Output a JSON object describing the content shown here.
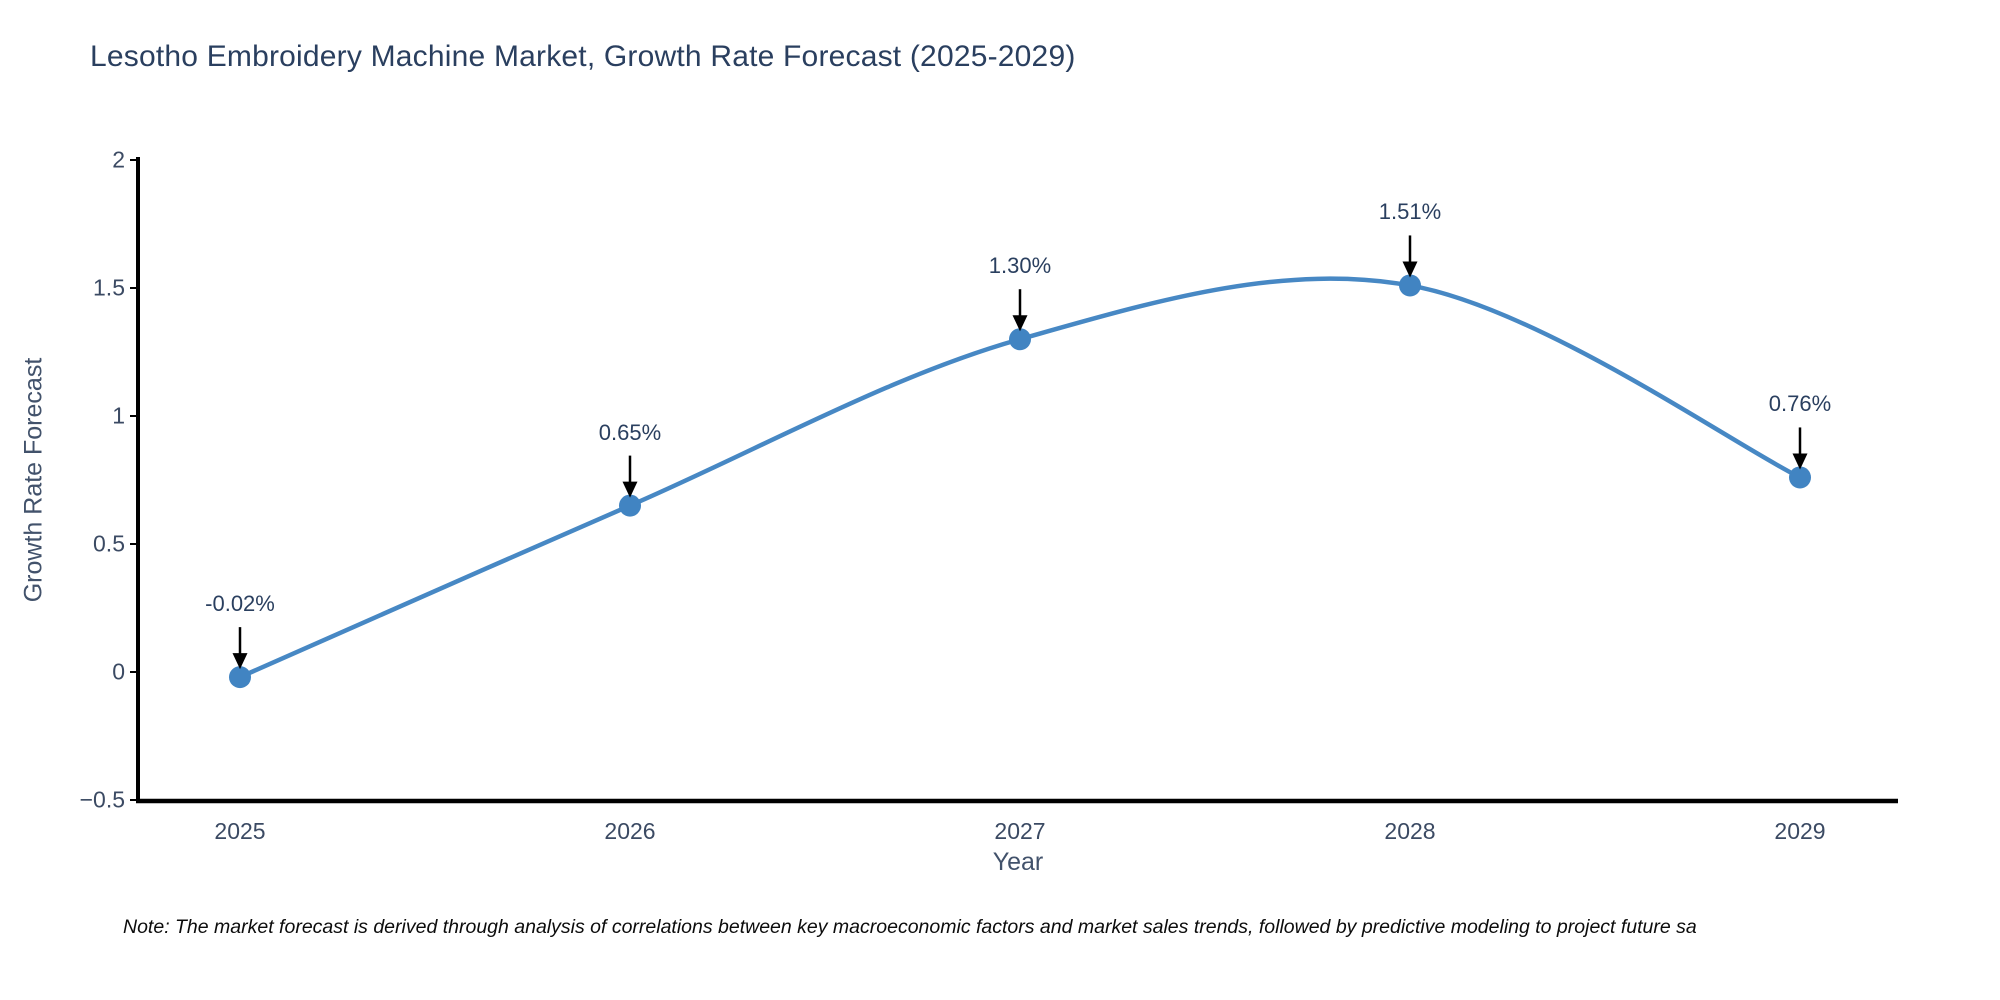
{
  "chart_data": {
    "type": "line",
    "curve": "spline",
    "title": "Lesotho Embroidery Machine Market, Growth Rate Forecast (2025-2029)",
    "xlabel": "Year",
    "ylabel": "Growth Rate Forecast",
    "x": [
      2025,
      2026,
      2027,
      2028,
      2029
    ],
    "values": [
      -0.02,
      0.65,
      1.3,
      1.51,
      0.76
    ],
    "point_labels": [
      "-0.02%",
      "0.65%",
      "1.30%",
      "1.51%",
      "0.76%"
    ],
    "x_tick_labels": [
      "2025",
      "2026",
      "2027",
      "2028",
      "2029"
    ],
    "y_ticks": [
      2,
      1.5,
      1,
      0.5,
      0,
      -0.5
    ],
    "y_tick_labels": [
      "2",
      "1.5",
      "1",
      "0.5",
      "0",
      "−0.5"
    ],
    "ylim": [
      -0.5,
      2
    ],
    "grid": false,
    "legend": null,
    "colors": {
      "line": "#4788c4",
      "marker": "#4184c2",
      "axis": "#000000",
      "annotation_arrow": "#000000",
      "title_text": "#2a3f5f",
      "tick_text": "#3b4a63",
      "axis_title_text": "#42526b"
    }
  },
  "note": {
    "text": "Note: The market forecast is derived through analysis of correlations between key macroeconomic factors and market sales trends, followed by predictive modeling to project future sa"
  }
}
